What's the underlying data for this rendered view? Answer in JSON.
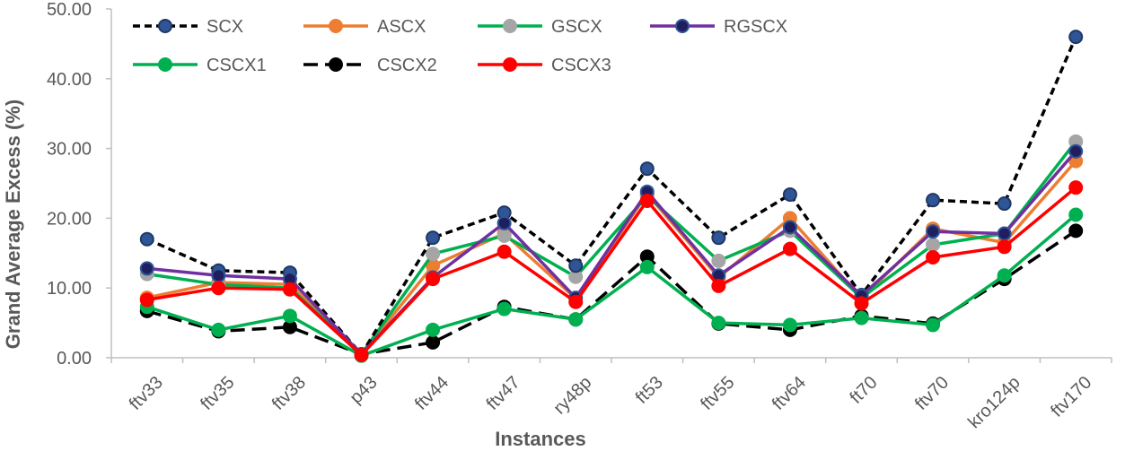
{
  "chart_data": {
    "type": "line",
    "title": "",
    "xlabel": "Instances",
    "ylabel": "Grand Average Excess (%)",
    "ylim": [
      0,
      50
    ],
    "yticks": [
      "0.00",
      "10.00",
      "20.00",
      "30.00",
      "40.00",
      "50.00"
    ],
    "grid": false,
    "legend_position": "top-left",
    "categories": [
      "ftv33",
      "ftv35",
      "ftv38",
      "p43",
      "ftv44",
      "ftv47",
      "ry48p",
      "ft53",
      "ftv55",
      "ftv64",
      "ft70",
      "ftv70",
      "kro124p",
      "ftv170"
    ],
    "series": [
      {
        "name": "SCX",
        "color": "#000000",
        "marker_fill": "#2F5597",
        "marker_edge": "#1F3864",
        "dash": "dashed",
        "values": [
          17.0,
          12.5,
          12.2,
          0.5,
          17.2,
          20.8,
          13.2,
          27.1,
          17.2,
          23.4,
          9.0,
          22.6,
          22.1,
          46.0
        ]
      },
      {
        "name": "ASCX",
        "color": "#ED7D31",
        "marker_fill": "#ED7D31",
        "marker_edge": "#ED7D31",
        "dash": "solid",
        "values": [
          8.6,
          10.8,
          10.5,
          0.5,
          13.2,
          17.8,
          8.5,
          23.5,
          11.5,
          20.0,
          8.5,
          18.5,
          16.5,
          28.2
        ]
      },
      {
        "name": "GSCX",
        "color": "#00B050",
        "marker_fill": "#A5A5A5",
        "marker_edge": "#A5A5A5",
        "dash": "solid",
        "values": [
          12.0,
          10.5,
          10.0,
          0.5,
          14.9,
          17.5,
          11.6,
          23.2,
          13.9,
          18.2,
          8.6,
          16.2,
          17.8,
          31.0
        ]
      },
      {
        "name": "RGSCX",
        "color": "#7030A0",
        "marker_fill": "#1F1F5F",
        "marker_edge": "#2F5597",
        "dash": "solid",
        "values": [
          12.8,
          11.8,
          11.3,
          0.5,
          11.5,
          19.3,
          8.6,
          23.8,
          11.8,
          18.7,
          8.9,
          18.1,
          17.8,
          29.6
        ]
      },
      {
        "name": "CSCX1",
        "color": "#00B050",
        "marker_fill": "#00B050",
        "marker_edge": "#00B050",
        "dash": "solid",
        "values": [
          7.3,
          4.0,
          6.0,
          0.3,
          4.0,
          7.0,
          5.5,
          13.0,
          5.0,
          4.7,
          5.7,
          4.7,
          11.8,
          20.5
        ]
      },
      {
        "name": "CSCX2",
        "color": "#000000",
        "marker_fill": "#000000",
        "marker_edge": "#000000",
        "dash": "longdash",
        "values": [
          6.7,
          3.8,
          4.4,
          0.5,
          2.2,
          7.3,
          5.5,
          14.5,
          4.9,
          4.0,
          6.0,
          4.9,
          11.3,
          18.2
        ]
      },
      {
        "name": "CSCX3",
        "color": "#FF0000",
        "marker_fill": "#FF0000",
        "marker_edge": "#FF0000",
        "dash": "solid",
        "values": [
          8.3,
          10.0,
          9.8,
          0.4,
          11.3,
          15.2,
          8.0,
          22.5,
          10.3,
          15.6,
          7.8,
          14.4,
          15.9,
          24.4
        ]
      }
    ]
  }
}
